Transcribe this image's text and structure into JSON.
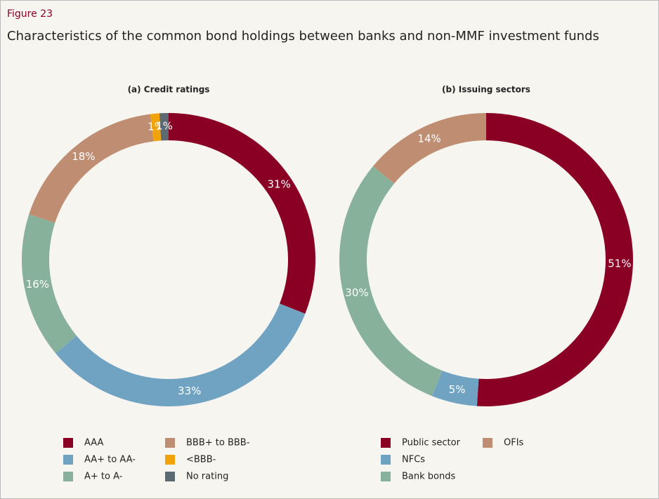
{
  "header": {
    "figure": "Figure 23",
    "title": "Characteristics of the common bond holdings between banks and non-MMF investment funds"
  },
  "chart_data": [
    {
      "type": "pie",
      "title": "(a) Credit ratings",
      "categories": [
        "AAA",
        "AA+ to AA-",
        "A+ to A-",
        "BBB+ to BBB-",
        "<BBB-",
        "No rating"
      ],
      "values": [
        31,
        33,
        16,
        18,
        1,
        1
      ],
      "value_labels": [
        "31%",
        "33%",
        "16%",
        "18%",
        "1%",
        "1%"
      ],
      "colors": [
        "#8a0025",
        "#70a3c2",
        "#87b19b",
        "#bf8e72",
        "#f0a30a",
        "#5e6a72"
      ]
    },
    {
      "type": "pie",
      "title": "(b) Issuing sectors",
      "categories": [
        "Public sector",
        "NFCs",
        "Bank bonds",
        "OFIs"
      ],
      "values": [
        51,
        5,
        30,
        14
      ],
      "value_labels": [
        "51%",
        "5%",
        "30%",
        "14%"
      ],
      "colors": [
        "#8a0025",
        "#70a3c2",
        "#87b19b",
        "#bf8e72"
      ]
    }
  ]
}
